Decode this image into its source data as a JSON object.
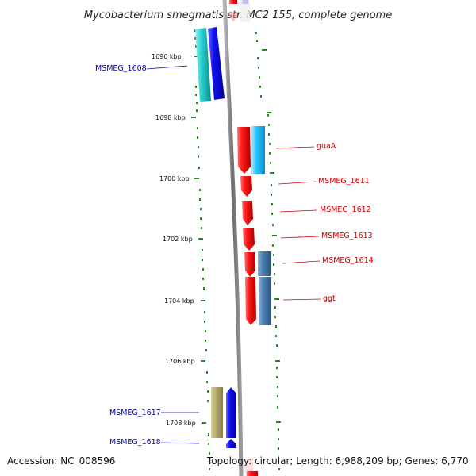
{
  "title": "Mycobacterium smegmatis str. MC2 155, complete genome",
  "footer": {
    "accession": "Accession: NC_008596",
    "topology": "Topology: circular; Length: 6,988,209 bp; Genes: 6,770"
  },
  "ticks": [
    {
      "label": "1696 kbp",
      "kbp": 1696
    },
    {
      "label": "1698 kbp",
      "kbp": 1698
    },
    {
      "label": "1700 kbp",
      "kbp": 1700
    },
    {
      "label": "1702 kbp",
      "kbp": 1702
    },
    {
      "label": "1704 kbp",
      "kbp": 1704
    },
    {
      "label": "1706 kbp",
      "kbp": 1706
    },
    {
      "label": "1708 kbp",
      "kbp": 1708
    }
  ],
  "genes": [
    {
      "name": "MSMEG_1608",
      "side": "left",
      "color": "#0b0bd6"
    },
    {
      "name": "guaA",
      "side": "right",
      "color": "#e81010"
    },
    {
      "name": "MSMEG_1611",
      "side": "right",
      "color": "#e81010"
    },
    {
      "name": "MSMEG_1612",
      "side": "right",
      "color": "#e81010"
    },
    {
      "name": "MSMEG_1613",
      "side": "right",
      "color": "#e81010"
    },
    {
      "name": "MSMEG_1614",
      "side": "right",
      "color": "#e81010"
    },
    {
      "name": "ggt",
      "side": "right",
      "color": "#e81010"
    },
    {
      "name": "MSMEG_1617",
      "side": "left",
      "color": "#0b0bd6"
    },
    {
      "name": "MSMEG_1618",
      "side": "left",
      "color": "#0b0bd6"
    }
  ]
}
